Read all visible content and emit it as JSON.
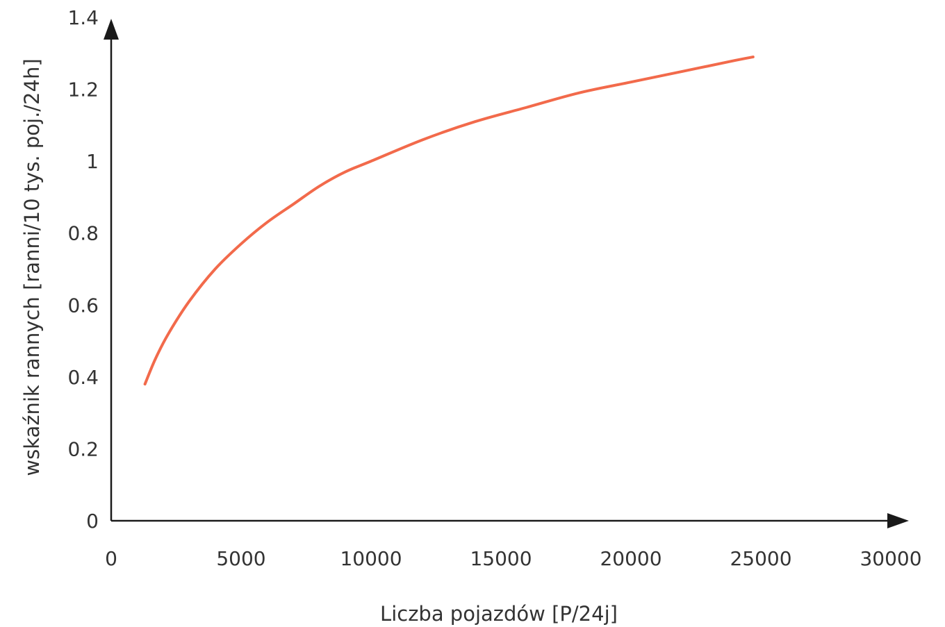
{
  "chart_data": {
    "type": "line",
    "title": "",
    "xlabel": "Liczba pojazdów [P/24j]",
    "ylabel": "wskaźnik rannych [ranni/10 tys. poj./24h]",
    "xlim": [
      0,
      30000
    ],
    "ylim": [
      0,
      1.4
    ],
    "xticks": [
      0,
      5000,
      10000,
      15000,
      20000,
      25000,
      30000
    ],
    "xtick_labels": [
      "0",
      "5000",
      "10000",
      "15000",
      "20000",
      "25000",
      "30000"
    ],
    "yticks": [
      0,
      0.2,
      0.4,
      0.6,
      0.8,
      1.0,
      1.2,
      1.4
    ],
    "ytick_labels": [
      "0",
      "0.2",
      "0.4",
      "0.6",
      "0.8",
      "1",
      "1.2",
      "1.4"
    ],
    "grid": false,
    "series": [
      {
        "color": "#f26a4b",
        "x": [
          1300,
          1700,
          2200,
          3000,
          4000,
          5000,
          6000,
          7000,
          8000,
          9000,
          10000,
          12000,
          14000,
          16000,
          18000,
          20000,
          22000,
          24000,
          24700
        ],
        "y": [
          0.38,
          0.45,
          0.52,
          0.61,
          0.7,
          0.77,
          0.83,
          0.88,
          0.93,
          0.97,
          1.0,
          1.06,
          1.11,
          1.15,
          1.19,
          1.22,
          1.25,
          1.28,
          1.29
        ]
      }
    ]
  }
}
